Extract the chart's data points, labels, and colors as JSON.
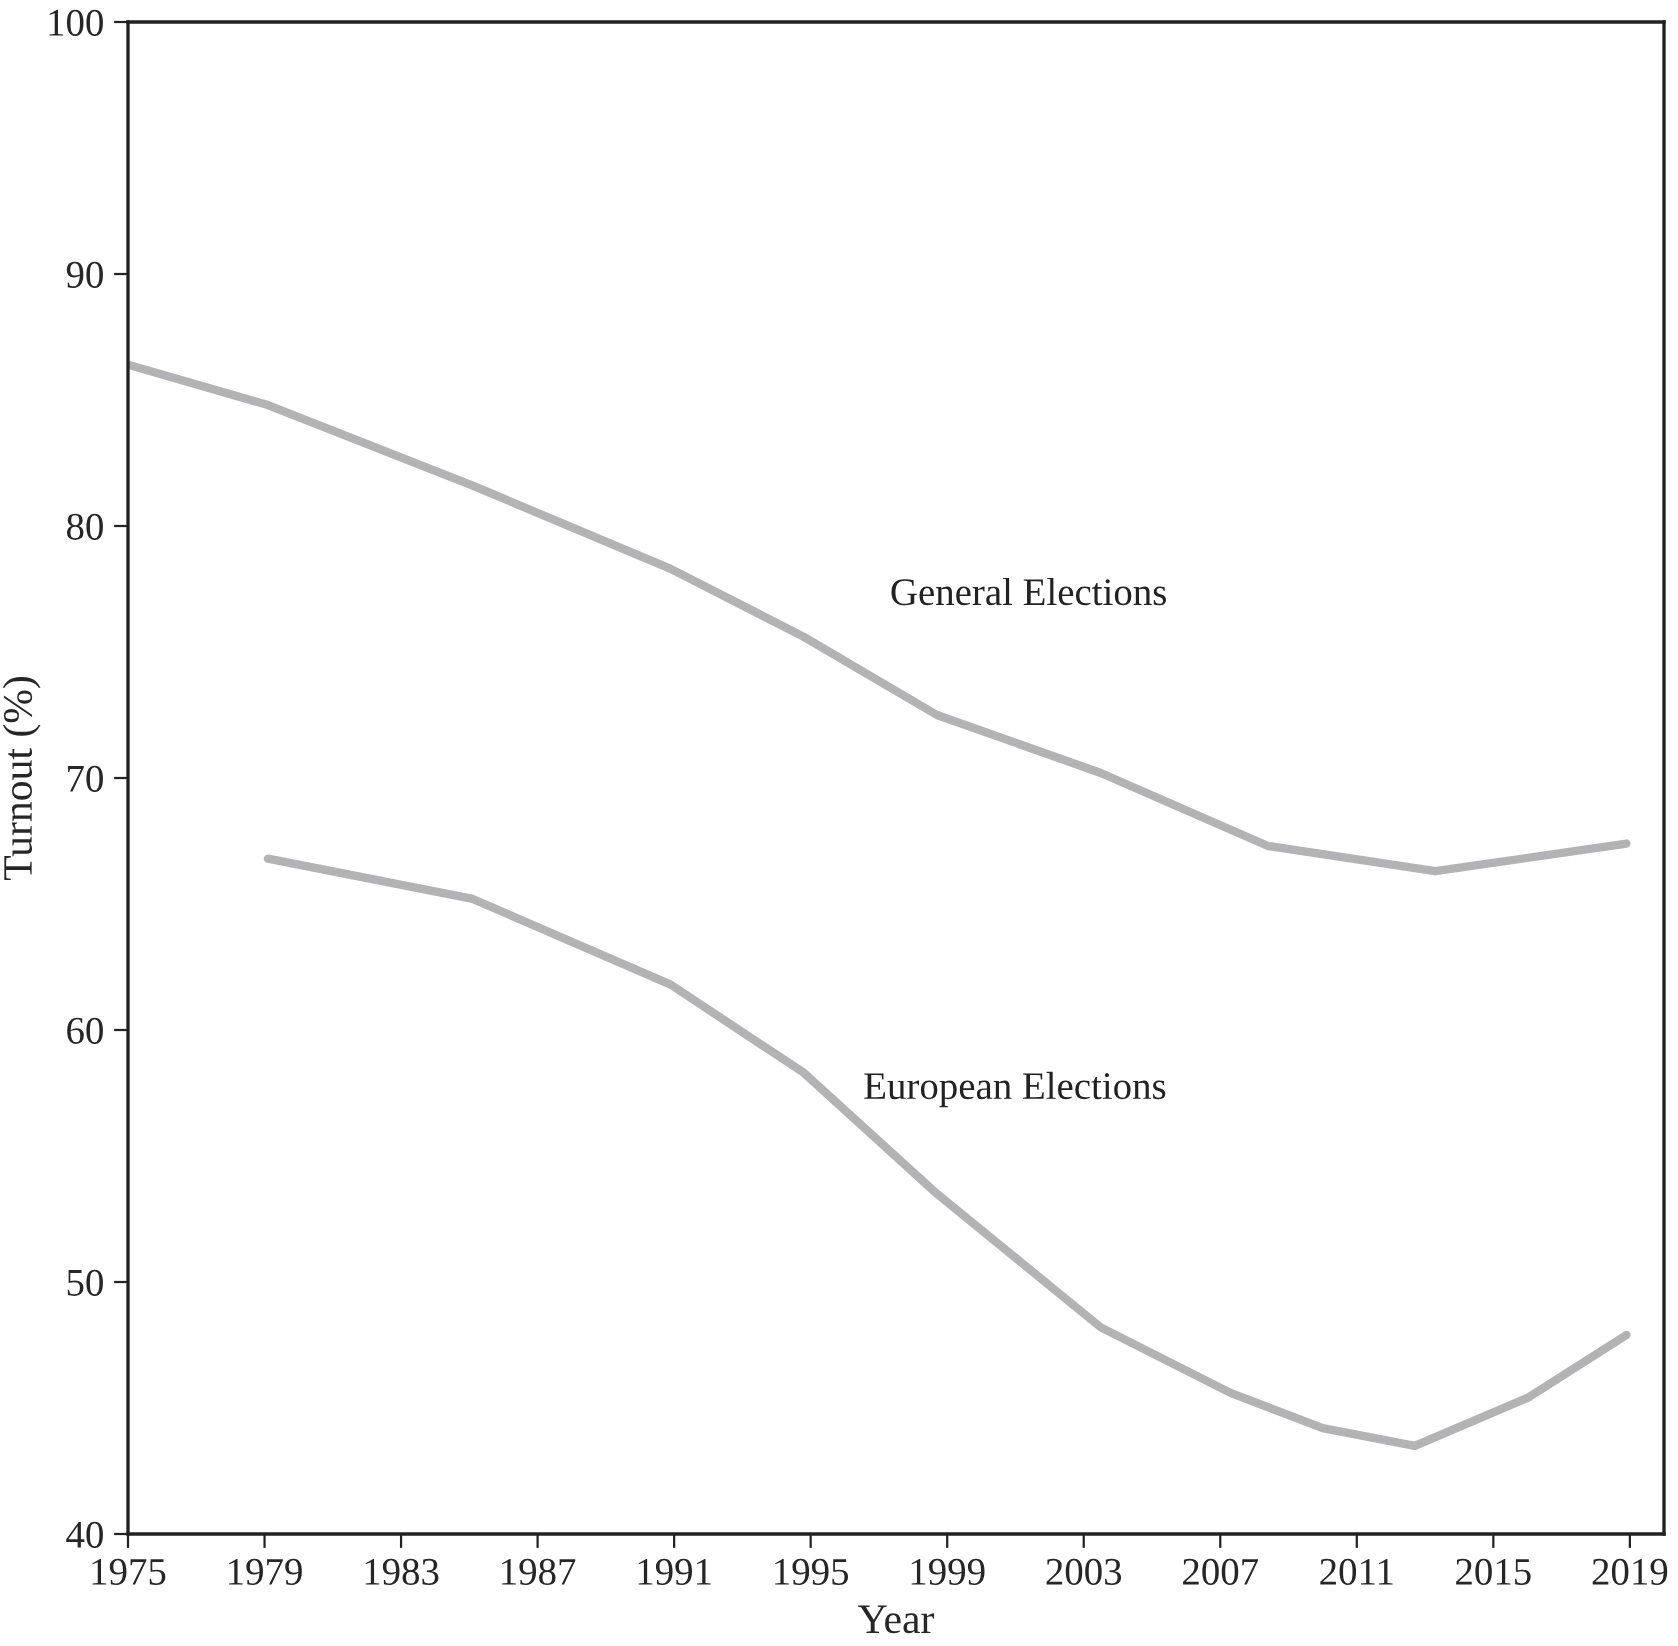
{
  "chart_data": {
    "type": "line",
    "xlabel": "Year",
    "ylabel": "Turnout (%)",
    "xlim": [
      1975,
      2020
    ],
    "xticks": [
      1975,
      1979,
      1983,
      1987,
      1991,
      1995,
      1999,
      2003,
      2007,
      2011,
      2015,
      2019
    ],
    "ylim": [
      40,
      100
    ],
    "yticks": [
      40,
      50,
      60,
      70,
      80,
      90,
      100
    ],
    "grid": false,
    "legend": false,
    "marker": "none",
    "line_style": "solid",
    "series": [
      {
        "name": "General Elections",
        "color": "#b3b3b5",
        "x": [
          1975,
          1979.1,
          1985.1,
          1990.9,
          1994.8,
          1998.7,
          2003.5,
          2008.4,
          2013.3,
          2018.9
        ],
        "values": [
          86.4,
          84.8,
          81.6,
          78.3,
          75.6,
          72.5,
          70.2,
          67.3,
          66.3,
          67.4
        ]
      },
      {
        "name": "European Elections",
        "color": "#b3b3b5",
        "x": [
          1979.1,
          1985.1,
          1990.9,
          1994.8,
          1998.7,
          2003.5,
          2007.3,
          2010,
          2012.7,
          2016,
          2018.9
        ],
        "values": [
          66.8,
          65.2,
          61.8,
          58.3,
          53.5,
          48.2,
          45.6,
          44.2,
          43.5,
          45.4,
          47.9
        ]
      }
    ]
  }
}
